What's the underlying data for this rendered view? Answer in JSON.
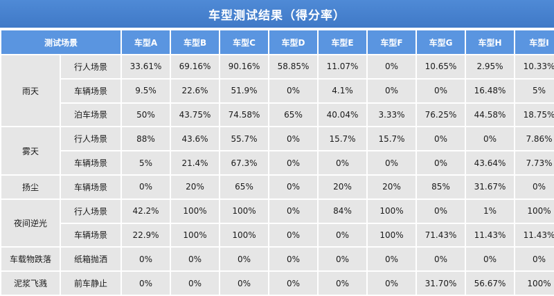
{
  "title": "车型测试结果（得分率）",
  "header": {
    "scene_label": "测试场景",
    "models": [
      "车型A",
      "车型B",
      "车型C",
      "车型D",
      "车型E",
      "车型F",
      "车型G",
      "车型H",
      "车型I"
    ]
  },
  "colors": {
    "pink": "#f4a7b6",
    "yellow": "#ffff00",
    "lgreen": "#92d050",
    "green": "#00b050",
    "gray": "#e6e6e6",
    "header_blue": "#5a95e0"
  },
  "groups": [
    {
      "name": "雨天",
      "rows": [
        {
          "scene": "行人场景",
          "values": [
            "33.61%",
            "69.16%",
            "90.16%",
            "58.85%",
            "11.07%",
            "0%",
            "10.65%",
            "2.95%",
            "10.33%"
          ],
          "colors": [
            "pink",
            "lgreen",
            "green",
            "yellow",
            "pink",
            "gray",
            "pink",
            "pink",
            "pink"
          ]
        },
        {
          "scene": "车辆场景",
          "values": [
            "9.5%",
            "22.6%",
            "51.9%",
            "0%",
            "4.1%",
            "0%",
            "0%",
            "16.48%",
            "5%"
          ],
          "colors": [
            "pink",
            "pink",
            "yellow",
            "gray",
            "pink",
            "gray",
            "gray",
            "pink",
            "pink"
          ]
        },
        {
          "scene": "泊车场景",
          "values": [
            "50%",
            "43.75%",
            "74.58%",
            "65%",
            "40.04%",
            "3.33%",
            "76.25%",
            "44.58%",
            "18.75%"
          ],
          "colors": [
            "yellow",
            "yellow",
            "lgreen",
            "lgreen",
            "yellow",
            "pink",
            "lgreen",
            "yellow",
            "pink"
          ]
        }
      ]
    },
    {
      "name": "雾天",
      "rows": [
        {
          "scene": "行人场景",
          "values": [
            "88%",
            "43.6%",
            "55.7%",
            "0%",
            "15.7%",
            "15.7%",
            "0%",
            "0%",
            "7.86%"
          ],
          "colors": [
            "green",
            "yellow",
            "yellow",
            "gray",
            "pink",
            "pink",
            "gray",
            "gray",
            "pink"
          ]
        },
        {
          "scene": "车辆场景",
          "values": [
            "5%",
            "21.4%",
            "67.3%",
            "0%",
            "0%",
            "0%",
            "0%",
            "43.64%",
            "7.73%"
          ],
          "colors": [
            "pink",
            "pink",
            "lgreen",
            "gray",
            "gray",
            "gray",
            "gray",
            "yellow",
            "pink"
          ]
        }
      ]
    },
    {
      "name": "扬尘",
      "rows": [
        {
          "scene": "车辆场景",
          "values": [
            "0%",
            "20%",
            "65%",
            "0%",
            "20%",
            "20%",
            "85%",
            "31.67%",
            "0%"
          ],
          "colors": [
            "gray",
            "pink",
            "lgreen",
            "gray",
            "pink",
            "pink",
            "green",
            "pink",
            "gray"
          ]
        }
      ]
    },
    {
      "name": "夜间逆光",
      "rows": [
        {
          "scene": "行人场景",
          "values": [
            "42.2%",
            "100%",
            "100%",
            "0%",
            "84%",
            "100%",
            "0%",
            "1%",
            "100%"
          ],
          "colors": [
            "yellow",
            "green",
            "green",
            "gray",
            "green",
            "green",
            "gray",
            "pink",
            "green"
          ]
        },
        {
          "scene": "车辆场景",
          "values": [
            "22.9%",
            "100%",
            "100%",
            "0%",
            "0%",
            "100%",
            "71.43%",
            "11.43%",
            "11.43%"
          ],
          "colors": [
            "pink",
            "green",
            "green",
            "gray",
            "gray",
            "green",
            "lgreen",
            "pink",
            "pink"
          ]
        }
      ]
    },
    {
      "name": "车载物跌落",
      "rows": [
        {
          "scene": "纸箱抛洒",
          "values": [
            "0%",
            "0%",
            "0%",
            "0%",
            "0%",
            "0%",
            "0%",
            "0%",
            "0%"
          ],
          "colors": [
            "gray",
            "gray",
            "gray",
            "gray",
            "gray",
            "gray",
            "gray",
            "gray",
            "gray"
          ]
        }
      ]
    },
    {
      "name": "泥浆飞溅",
      "rows": [
        {
          "scene": "前车静止",
          "values": [
            "0%",
            "0%",
            "0%",
            "0%",
            "0%",
            "0%",
            "31.70%",
            "56.67%",
            "100%"
          ],
          "colors": [
            "gray",
            "gray",
            "gray",
            "gray",
            "gray",
            "gray",
            "pink",
            "yellow",
            "green"
          ]
        }
      ]
    }
  ]
}
